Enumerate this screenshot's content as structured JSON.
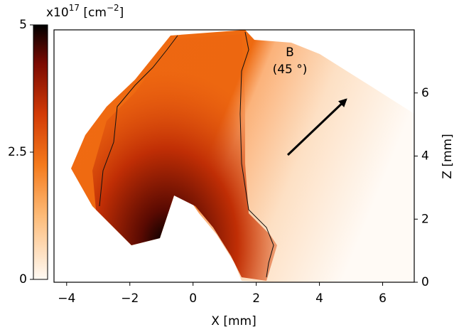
{
  "chart_data": {
    "type": "heatmap",
    "xlabel": "X [mm]",
    "ylabel": "Z [mm]",
    "xlim": [
      -4.4,
      7
    ],
    "xticks": [
      {
        "value": -4,
        "label": "−4"
      },
      {
        "value": -2,
        "label": "−2"
      },
      0,
      2,
      4,
      6
    ],
    "ylim": [
      0,
      8
    ],
    "yticks": [
      0,
      2,
      4,
      6
    ],
    "colorbar_label": [
      "x10",
      "17",
      " [cm",
      "−2",
      "]"
    ],
    "clim": [
      0,
      5
    ],
    "cticks": [
      0,
      2.5,
      5
    ],
    "annotation": [
      "B",
      "(45 °)"
    ]
  }
}
